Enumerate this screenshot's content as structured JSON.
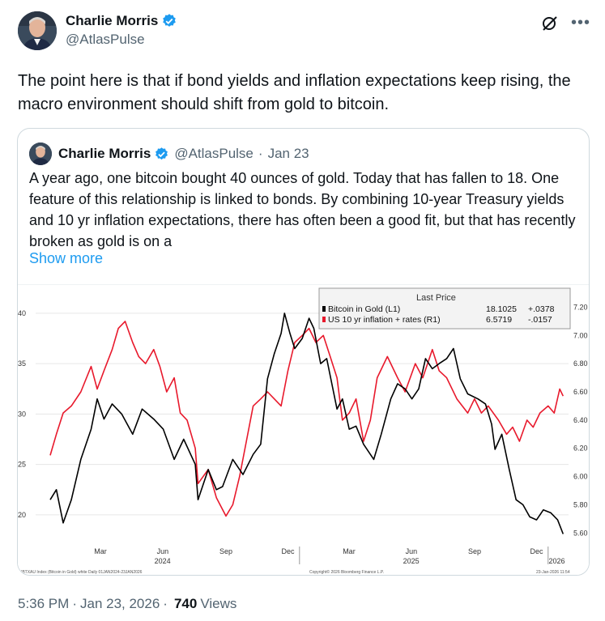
{
  "author": {
    "display_name": "Charlie Morris",
    "handle": "@AtlasPulse",
    "avatar_icon": "avatar-photo",
    "verified_color": "#1d9bf0"
  },
  "tweet": {
    "text": "The point here is that if bond yields and inflation expectations keep rising, the macro environment should shift from gold to bitcoin."
  },
  "quote": {
    "display_name": "Charlie Morris",
    "handle": "@AtlasPulse",
    "dot": "·",
    "date": "Jan 23",
    "text": "A year ago, one bitcoin bought 40 ounces of gold. Today that has fallen to 18. One feature of this relationship is linked to bonds. By combining 10-year Treasury yields and 10 yr inflation expectations, there has often been a good fit, but that has recently broken as gold is on a",
    "show_more": "Show more"
  },
  "chart_data": {
    "type": "line",
    "legend": {
      "header": "Last Price",
      "entries": [
        {
          "name": "Bitcoin in Gold  (L1)",
          "value": "18.1025",
          "change": "+.0378",
          "color": "#000000"
        },
        {
          "name": "US 10 yr inflation + rates  (R1)",
          "value": "6.5719",
          "change": "-.0157",
          "color": "#e8192c"
        }
      ]
    },
    "left_ticks": [
      "40",
      "35",
      "30",
      "25",
      "20"
    ],
    "right_ticks": [
      "7.20",
      "7.00",
      "6.80",
      "6.60",
      "6.40",
      "6.20",
      "6.00",
      "5.80",
      "5.60"
    ],
    "x_months": [
      "Mar",
      "Jun",
      "Sep",
      "Dec",
      "Mar",
      "Jun",
      "Sep",
      "Dec"
    ],
    "x_years": [
      "2024",
      "2025",
      "2026"
    ],
    "footer_left": "XBTXAU Index (Bitcoin in Gold) white Daily 01JAN2024-23JAN2026",
    "footer_center": "Copyright© 2026 Bloomberg Finance L.P.",
    "footer_right": "23-Jan-2026 11:54",
    "ylim_left": [
      17.5,
      42
    ],
    "ylim_right": [
      5.55,
      7.3
    ],
    "series": [
      {
        "name": "Bitcoin in Gold  (L1)",
        "color": "#000000",
        "points": [
          [
            "2024-01-01",
            21.5
          ],
          [
            "2024-01-10",
            22.5
          ],
          [
            "2024-01-20",
            19.2
          ],
          [
            "2024-02-01",
            21.5
          ],
          [
            "2024-02-15",
            25.5
          ],
          [
            "2024-03-01",
            28.5
          ],
          [
            "2024-03-10",
            31.5
          ],
          [
            "2024-03-20",
            29.5
          ],
          [
            "2024-04-01",
            31.0
          ],
          [
            "2024-04-15",
            30.0
          ],
          [
            "2024-05-01",
            28.0
          ],
          [
            "2024-05-15",
            30.5
          ],
          [
            "2024-06-01",
            29.5
          ],
          [
            "2024-06-15",
            28.5
          ],
          [
            "2024-07-01",
            25.5
          ],
          [
            "2024-07-15",
            27.5
          ],
          [
            "2024-08-01",
            25.0
          ],
          [
            "2024-08-05",
            21.5
          ],
          [
            "2024-08-20",
            24.5
          ],
          [
            "2024-09-01",
            22.5
          ],
          [
            "2024-09-10",
            22.8
          ],
          [
            "2024-09-25",
            25.5
          ],
          [
            "2024-10-10",
            24.0
          ],
          [
            "2024-10-25",
            26.0
          ],
          [
            "2024-11-05",
            27.0
          ],
          [
            "2024-11-15",
            33.5
          ],
          [
            "2024-11-25",
            36.0
          ],
          [
            "2024-12-05",
            38.0
          ],
          [
            "2024-12-10",
            40.0
          ],
          [
            "2024-12-18",
            38.0
          ],
          [
            "2024-12-25",
            36.5
          ],
          [
            "2025-01-05",
            37.5
          ],
          [
            "2025-01-15",
            39.5
          ],
          [
            "2025-01-22",
            38.5
          ],
          [
            "2025-02-01",
            35.0
          ],
          [
            "2025-02-10",
            35.5
          ],
          [
            "2025-02-25",
            30.5
          ],
          [
            "2025-03-05",
            31.5
          ],
          [
            "2025-03-15",
            28.5
          ],
          [
            "2025-03-25",
            28.8
          ],
          [
            "2025-04-05",
            27.0
          ],
          [
            "2025-04-20",
            25.5
          ],
          [
            "2025-05-01",
            28.0
          ],
          [
            "2025-05-15",
            31.5
          ],
          [
            "2025-05-25",
            33.0
          ],
          [
            "2025-06-05",
            32.5
          ],
          [
            "2025-06-15",
            31.5
          ],
          [
            "2025-06-25",
            32.5
          ],
          [
            "2025-07-05",
            35.5
          ],
          [
            "2025-07-15",
            34.5
          ],
          [
            "2025-07-25",
            35.0
          ],
          [
            "2025-08-05",
            35.5
          ],
          [
            "2025-08-15",
            36.5
          ],
          [
            "2025-08-25",
            33.5
          ],
          [
            "2025-09-05",
            32.0
          ],
          [
            "2025-09-20",
            31.5
          ],
          [
            "2025-10-01",
            31.0
          ],
          [
            "2025-10-10",
            29.0
          ],
          [
            "2025-10-15",
            26.5
          ],
          [
            "2025-10-25",
            28.0
          ],
          [
            "2025-11-05",
            24.5
          ],
          [
            "2025-11-15",
            21.5
          ],
          [
            "2025-11-25",
            21.0
          ],
          [
            "2025-12-05",
            19.8
          ],
          [
            "2025-12-15",
            19.5
          ],
          [
            "2025-12-25",
            20.5
          ],
          [
            "2026-01-05",
            20.2
          ],
          [
            "2026-01-15",
            19.5
          ],
          [
            "2026-01-23",
            18.1
          ]
        ]
      },
      {
        "name": "US 10 yr inflation + rates  (R1)",
        "color": "#e8192c",
        "points": [
          [
            "2024-01-01",
            6.15
          ],
          [
            "2024-01-10",
            6.3
          ],
          [
            "2024-01-20",
            6.45
          ],
          [
            "2024-02-01",
            6.5
          ],
          [
            "2024-02-15",
            6.6
          ],
          [
            "2024-03-01",
            6.78
          ],
          [
            "2024-03-10",
            6.62
          ],
          [
            "2024-03-20",
            6.75
          ],
          [
            "2024-04-01",
            6.9
          ],
          [
            "2024-04-10",
            7.05
          ],
          [
            "2024-04-20",
            7.1
          ],
          [
            "2024-05-01",
            6.95
          ],
          [
            "2024-05-10",
            6.85
          ],
          [
            "2024-05-20",
            6.8
          ],
          [
            "2024-06-01",
            6.9
          ],
          [
            "2024-06-10",
            6.78
          ],
          [
            "2024-06-20",
            6.6
          ],
          [
            "2024-07-01",
            6.7
          ],
          [
            "2024-07-10",
            6.45
          ],
          [
            "2024-07-20",
            6.4
          ],
          [
            "2024-08-01",
            6.2
          ],
          [
            "2024-08-05",
            5.95
          ],
          [
            "2024-08-20",
            6.05
          ],
          [
            "2024-09-01",
            5.85
          ],
          [
            "2024-09-15",
            5.72
          ],
          [
            "2024-09-25",
            5.8
          ],
          [
            "2024-10-05",
            6.0
          ],
          [
            "2024-10-15",
            6.25
          ],
          [
            "2024-10-25",
            6.5
          ],
          [
            "2024-11-05",
            6.55
          ],
          [
            "2024-11-15",
            6.6
          ],
          [
            "2024-11-25",
            6.55
          ],
          [
            "2024-12-05",
            6.5
          ],
          [
            "2024-12-15",
            6.75
          ],
          [
            "2024-12-25",
            6.95
          ],
          [
            "2025-01-05",
            7.0
          ],
          [
            "2025-01-15",
            7.05
          ],
          [
            "2025-01-25",
            6.95
          ],
          [
            "2025-02-05",
            7.0
          ],
          [
            "2025-02-15",
            6.85
          ],
          [
            "2025-02-25",
            6.7
          ],
          [
            "2025-03-05",
            6.4
          ],
          [
            "2025-03-15",
            6.45
          ],
          [
            "2025-03-25",
            6.55
          ],
          [
            "2025-04-05",
            6.25
          ],
          [
            "2025-04-15",
            6.4
          ],
          [
            "2025-04-25",
            6.7
          ],
          [
            "2025-05-10",
            6.85
          ],
          [
            "2025-05-25",
            6.7
          ],
          [
            "2025-06-05",
            6.6
          ],
          [
            "2025-06-20",
            6.8
          ],
          [
            "2025-07-01",
            6.7
          ],
          [
            "2025-07-15",
            6.9
          ],
          [
            "2025-07-25",
            6.75
          ],
          [
            "2025-08-05",
            6.7
          ],
          [
            "2025-08-20",
            6.55
          ],
          [
            "2025-09-05",
            6.45
          ],
          [
            "2025-09-15",
            6.55
          ],
          [
            "2025-09-25",
            6.45
          ],
          [
            "2025-10-05",
            6.5
          ],
          [
            "2025-10-20",
            6.4
          ],
          [
            "2025-11-01",
            6.3
          ],
          [
            "2025-11-10",
            6.35
          ],
          [
            "2025-11-20",
            6.25
          ],
          [
            "2025-12-01",
            6.4
          ],
          [
            "2025-12-10",
            6.35
          ],
          [
            "2025-12-20",
            6.45
          ],
          [
            "2026-01-01",
            6.5
          ],
          [
            "2026-01-10",
            6.45
          ],
          [
            "2026-01-18",
            6.62
          ],
          [
            "2026-01-23",
            6.57
          ]
        ]
      }
    ]
  },
  "footer": {
    "time": "5:36 PM",
    "sep": "·",
    "date": "Jan 23, 2026",
    "sep2": "·",
    "views_count": "740",
    "views_label": "Views"
  }
}
